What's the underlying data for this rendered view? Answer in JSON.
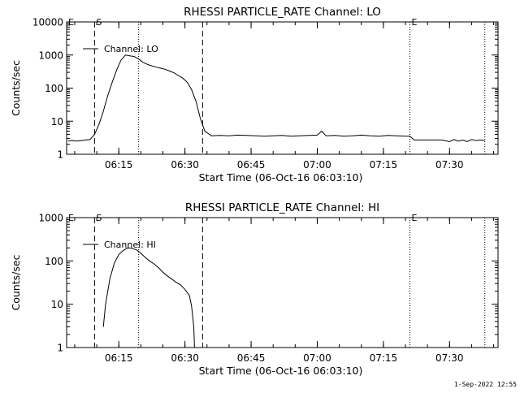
{
  "footer": {
    "timestamp": "1-Sep-2022 12:55"
  },
  "chart_data": [
    {
      "type": "line",
      "title": "RHESSI PARTICLE_RATE Channel: LO",
      "xlabel": "Start Time (06-Oct-16 06:03:10)",
      "ylabel": "Counts/sec",
      "yscale": "log",
      "ylim": [
        1,
        10000
      ],
      "xlim": [
        "06:03:10",
        "07:41:00"
      ],
      "xticks": [
        "06:15",
        "06:30",
        "06:45",
        "07:00",
        "07:15",
        "07:30"
      ],
      "yticks": [
        "1",
        "10",
        "100",
        "1000",
        "10000"
      ],
      "legend": {
        "position": "top-left",
        "label": "Channel: LO"
      },
      "markers": {
        "dashed": [
          "06:09:30",
          "06:34:00"
        ],
        "dotted": [
          "06:19:30",
          "07:21:00",
          "07:38:00"
        ],
        "labels": [
          {
            "text": "E",
            "at": "06:03:10"
          },
          {
            "text": "S",
            "at": "06:09:30"
          },
          {
            "text": "E",
            "at": "07:21:00"
          }
        ]
      },
      "series": [
        {
          "name": "Channel: LO",
          "x": [
            "06:03:30",
            "06:04:30",
            "06:05:30",
            "06:06:30",
            "06:07:30",
            "06:08:30",
            "06:09:30",
            "06:10:30",
            "06:11:30",
            "06:12:30",
            "06:13:30",
            "06:14:30",
            "06:15:30",
            "06:16:30",
            "06:17:30",
            "06:18:30",
            "06:19:30",
            "06:20:30",
            "06:21:30",
            "06:22:30",
            "06:23:30",
            "06:24:30",
            "06:25:30",
            "06:26:30",
            "06:27:30",
            "06:28:30",
            "06:29:30",
            "06:30:30",
            "06:31:30",
            "06:32:30",
            "06:33:30",
            "06:34:30",
            "06:36:00",
            "06:38:00",
            "06:40:00",
            "06:42:00",
            "06:44:00",
            "06:46:00",
            "06:48:00",
            "06:50:00",
            "06:52:00",
            "06:54:00",
            "06:56:00",
            "06:58:00",
            "07:00:00",
            "07:01:00",
            "07:02:00",
            "07:04:00",
            "07:06:00",
            "07:08:00",
            "07:10:00",
            "07:12:00",
            "07:14:00",
            "07:16:00",
            "07:18:00",
            "07:20:00",
            "07:21:00",
            "07:22:00",
            "07:24:00",
            "07:26:00",
            "07:28:00",
            "07:29:00",
            "07:30:00",
            "07:31:00",
            "07:32:00",
            "07:33:00",
            "07:34:00",
            "07:35:00",
            "07:36:00",
            "07:37:00",
            "07:38:00"
          ],
          "y": [
            2.5,
            2.6,
            2.5,
            2.6,
            2.7,
            2.8,
            4,
            8,
            20,
            60,
            150,
            350,
            700,
            1000,
            950,
            900,
            750,
            600,
            520,
            470,
            430,
            400,
            370,
            330,
            290,
            240,
            200,
            150,
            90,
            40,
            12,
            5,
            3.6,
            3.7,
            3.6,
            3.8,
            3.7,
            3.6,
            3.5,
            3.6,
            3.7,
            3.5,
            3.6,
            3.7,
            3.8,
            5,
            3.6,
            3.7,
            3.5,
            3.6,
            3.8,
            3.6,
            3.5,
            3.7,
            3.6,
            3.5,
            3.5,
            2.7,
            2.7,
            2.7,
            2.7,
            2.6,
            2.4,
            2.8,
            2.5,
            2.7,
            2.4,
            2.8,
            2.6,
            2.7,
            2.6
          ]
        }
      ]
    },
    {
      "type": "line",
      "title": "RHESSI PARTICLE_RATE Channel: HI",
      "xlabel": "Start Time (06-Oct-16 06:03:10)",
      "ylabel": "Counts/sec",
      "yscale": "log",
      "ylim": [
        1,
        1000
      ],
      "xlim": [
        "06:03:10",
        "07:41:00"
      ],
      "xticks": [
        "06:15",
        "06:30",
        "06:45",
        "07:00",
        "07:15",
        "07:30"
      ],
      "yticks": [
        "1",
        "10",
        "100",
        "1000"
      ],
      "legend": {
        "position": "top-left",
        "label": "Channel: HI"
      },
      "markers": {
        "dashed": [
          "06:09:30",
          "06:34:00"
        ],
        "dotted": [
          "06:19:30",
          "07:21:00",
          "07:38:00"
        ],
        "labels": [
          {
            "text": "E",
            "at": "06:03:10"
          },
          {
            "text": "S",
            "at": "06:09:30"
          },
          {
            "text": "E",
            "at": "07:21:00"
          }
        ]
      },
      "series": [
        {
          "name": "Channel: HI",
          "x": [
            "06:11:30",
            "06:12:00",
            "06:13:00",
            "06:14:00",
            "06:15:00",
            "06:16:00",
            "06:17:00",
            "06:18:00",
            "06:19:00",
            "06:20:00",
            "06:21:00",
            "06:22:00",
            "06:23:00",
            "06:24:00",
            "06:25:00",
            "06:26:00",
            "06:27:00",
            "06:28:00",
            "06:29:00",
            "06:30:00",
            "06:31:00",
            "06:31:30",
            "06:32:00",
            "06:32:10"
          ],
          "y": [
            3,
            10,
            40,
            90,
            140,
            175,
            200,
            195,
            180,
            150,
            120,
            100,
            85,
            70,
            55,
            45,
            38,
            32,
            28,
            22,
            16,
            9,
            3,
            1
          ]
        }
      ]
    }
  ]
}
